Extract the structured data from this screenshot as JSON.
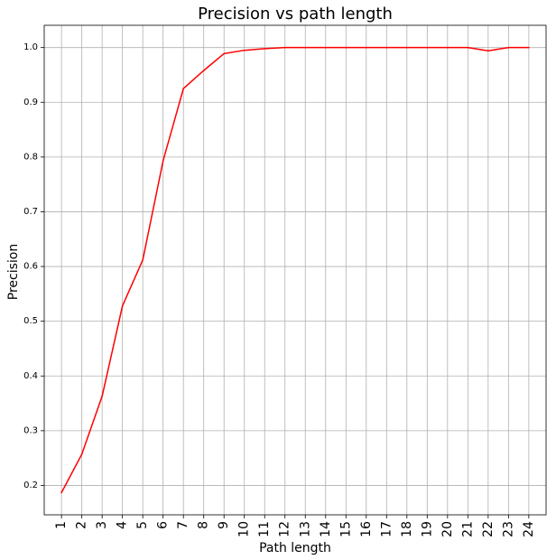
{
  "chart_data": {
    "type": "line",
    "title": "Precision vs path length",
    "xlabel": "Path length",
    "ylabel": "Precision",
    "x": [
      1,
      2,
      3,
      4,
      5,
      6,
      7,
      8,
      9,
      10,
      11,
      12,
      13,
      14,
      15,
      16,
      17,
      18,
      19,
      20,
      21,
      22,
      23,
      24
    ],
    "xtick_labels": [
      "1",
      "2",
      "3",
      "4",
      "5",
      "6",
      "7",
      "8",
      "9",
      "10",
      "11",
      "12",
      "13",
      "14",
      "15",
      "16",
      "17",
      "18",
      "19",
      "20",
      "21",
      "22",
      "23",
      "24"
    ],
    "series": [
      {
        "color": "#ff0000",
        "values": [
          0.187,
          0.257,
          0.363,
          0.528,
          0.612,
          0.793,
          0.925,
          0.958,
          0.989,
          0.995,
          0.998,
          1.0,
          1.0,
          1.0,
          1.0,
          1.0,
          1.0,
          1.0,
          1.0,
          1.0,
          1.0,
          0.994,
          1.0,
          1.0
        ]
      }
    ],
    "yticks": [
      0.2,
      0.3,
      0.4,
      0.5,
      0.6,
      0.7,
      0.8,
      0.9,
      1.0
    ],
    "ytick_labels": [
      "0.2",
      "0.3",
      "0.4",
      "0.5",
      "0.6",
      "0.7",
      "0.8",
      "0.9",
      "1.0"
    ],
    "xlim": [
      0.15,
      24.85
    ],
    "ylim": [
      0.1463,
      1.0407
    ],
    "grid": true,
    "legend": "none"
  }
}
